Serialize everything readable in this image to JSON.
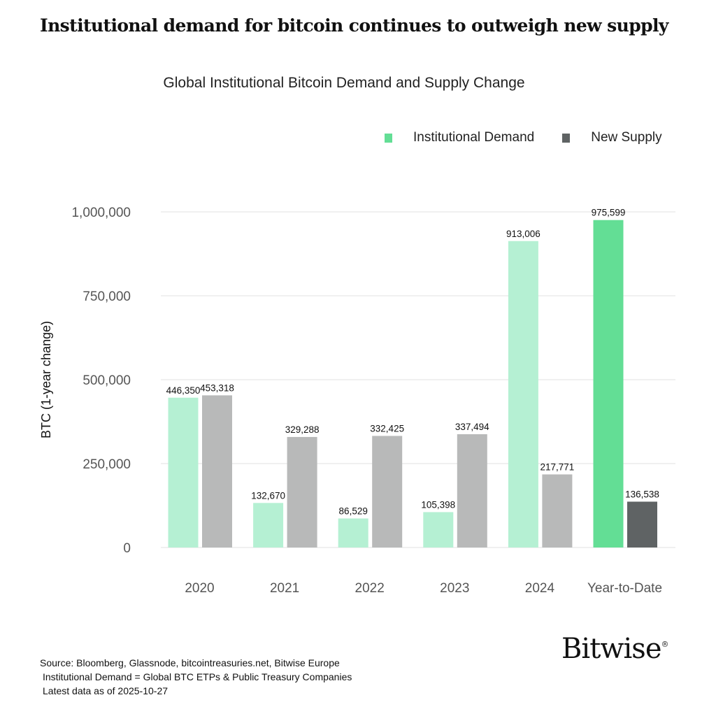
{
  "headline": "Institutional demand for bitcoin continues to outweigh new supply",
  "chart_data": {
    "type": "bar",
    "title": "Global Institutional Bitcoin Demand and Supply Change",
    "ylabel": "BTC (1-year change)",
    "xlabel": "",
    "ylim": [
      0,
      1000000
    ],
    "yticks": [
      "0",
      "250,000",
      "500,000",
      "750,000",
      "1,000,000"
    ],
    "ytick_values": [
      0,
      250000,
      500000,
      750000,
      1000000
    ],
    "grid": true,
    "legend_position": "top-right",
    "categories": [
      "2020",
      "2021",
      "2022",
      "2023",
      "2024",
      "Year-to-Date"
    ],
    "series": [
      {
        "name": "Institutional Demand",
        "color": "#b5f0d3",
        "highlight_color": "#63de95",
        "values": [
          446350,
          132670,
          86529,
          105398,
          913006,
          975599
        ],
        "labels": [
          "446,350",
          "132,670",
          "86,529",
          "105,398",
          "913,006",
          "975,599"
        ]
      },
      {
        "name": "New Supply",
        "color": "#b8b9b9",
        "highlight_color": "#5f6364",
        "values": [
          453318,
          329288,
          332425,
          337494,
          217771,
          136538
        ],
        "labels": [
          "453,318",
          "329,288",
          "332,425",
          "337,494",
          "217,771",
          "136,538"
        ]
      }
    ],
    "highlighted_category": "Year-to-Date"
  },
  "footer": {
    "source": "Source: Bloomberg, Glassnode, bitcointreasuries.net, Bitwise Europe",
    "definition": "Institutional Demand = Global BTC ETPs & Public Treasury Companies",
    "asof": "Latest data as of 2025-10-27"
  },
  "logo": "Bitwise"
}
